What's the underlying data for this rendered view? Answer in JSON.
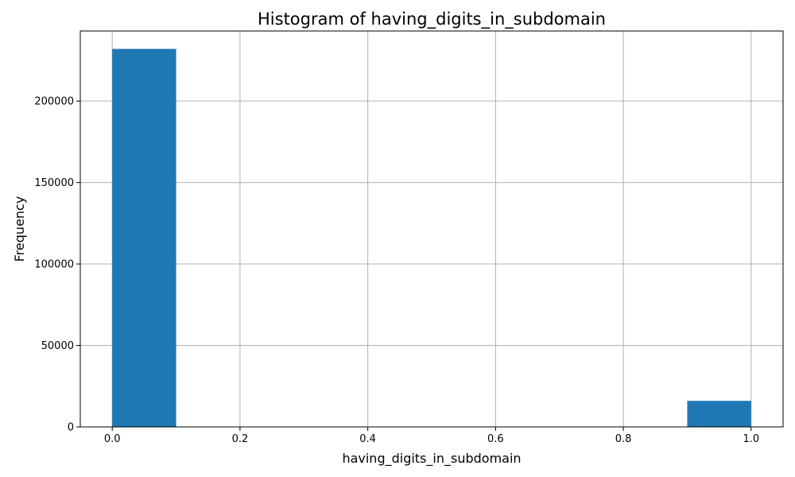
{
  "chart_data": {
    "type": "bar",
    "title": "Histogram of having_digits_in_subdomain",
    "xlabel": "having_digits_in_subdomain",
    "ylabel": "Frequency",
    "xlim": [
      -0.05,
      1.05
    ],
    "ylim": [
      0,
      243000
    ],
    "grid": true,
    "bar_color": "#1f77b4",
    "bins": [
      {
        "x0": 0.0,
        "x1": 0.1,
        "value": 232000
      },
      {
        "x0": 0.9,
        "x1": 1.0,
        "value": 16000
      }
    ],
    "x_ticks": [
      0.0,
      0.2,
      0.4,
      0.6,
      0.8,
      1.0
    ],
    "x_tick_labels": [
      "0.0",
      "0.2",
      "0.4",
      "0.6",
      "0.8",
      "1.0"
    ],
    "y_ticks": [
      0,
      50000,
      100000,
      150000,
      200000
    ],
    "y_tick_labels": [
      "0",
      "50000",
      "100000",
      "150000",
      "200000"
    ]
  }
}
